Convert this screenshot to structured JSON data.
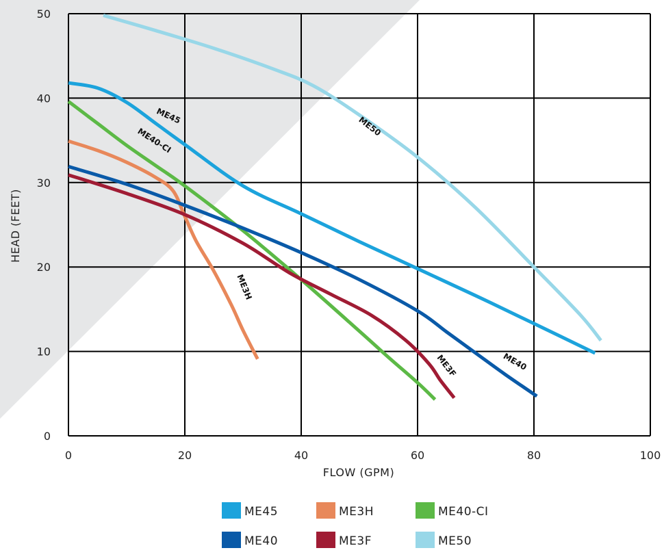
{
  "chart_data": {
    "type": "line",
    "xlabel": "FLOW (GPM)",
    "ylabel": "HEAD (FEET)",
    "xlim": [
      0,
      100
    ],
    "ylim": [
      0,
      50
    ],
    "x_ticks": [
      "0",
      "20",
      "40",
      "60",
      "80",
      "100"
    ],
    "y_ticks": [
      "0",
      "10",
      "20",
      "30",
      "40",
      "50"
    ],
    "grid": true,
    "legend_position": "bottom",
    "background_shading": "#e6e7e8",
    "series": [
      {
        "name": "ME45",
        "color": "#1ca3dc",
        "label": "ME45",
        "points": [
          [
            0,
            41.8
          ],
          [
            5,
            41.2
          ],
          [
            10,
            39.5
          ],
          [
            15,
            37
          ],
          [
            20,
            34.5
          ],
          [
            30,
            29.6
          ],
          [
            40,
            26.3
          ],
          [
            50,
            23
          ],
          [
            60,
            19.8
          ],
          [
            70,
            16.6
          ],
          [
            80,
            13.3
          ],
          [
            90.5,
            9.8
          ]
        ]
      },
      {
        "name": "ME3H",
        "color": "#e8885a",
        "label": "ME3H",
        "points": [
          [
            0,
            34.9
          ],
          [
            5,
            33.8
          ],
          [
            10,
            32.4
          ],
          [
            15,
            30.6
          ],
          [
            18,
            29
          ],
          [
            20,
            26
          ],
          [
            22,
            23
          ],
          [
            25,
            19.5
          ],
          [
            28,
            15.5
          ],
          [
            30,
            12.5
          ],
          [
            32.5,
            9.1
          ]
        ]
      },
      {
        "name": "ME40-CI",
        "color": "#5cb946",
        "label": "ME40-CI",
        "points": [
          [
            0,
            39.6
          ],
          [
            5,
            37
          ],
          [
            10,
            34.4
          ],
          [
            15,
            32
          ],
          [
            20,
            29.6
          ],
          [
            30,
            24.3
          ],
          [
            40,
            18.5
          ],
          [
            50,
            12.4
          ],
          [
            55,
            9.3
          ],
          [
            60,
            6.3
          ],
          [
            63,
            4.3
          ]
        ]
      },
      {
        "name": "ME40",
        "color": "#0a5aa8",
        "label": "ME40",
        "points": [
          [
            0,
            31.9
          ],
          [
            10,
            29.8
          ],
          [
            20,
            27.3
          ],
          [
            30,
            24.6
          ],
          [
            40,
            21.7
          ],
          [
            50,
            18.5
          ],
          [
            60,
            14.8
          ],
          [
            65,
            12.3
          ],
          [
            70,
            9.8
          ],
          [
            75,
            7.3
          ],
          [
            80.5,
            4.7
          ]
        ]
      },
      {
        "name": "ME3F",
        "color": "#a01c34",
        "label": "ME3F",
        "points": [
          [
            0,
            30.9
          ],
          [
            10,
            28.7
          ],
          [
            20,
            26.2
          ],
          [
            30,
            22.8
          ],
          [
            38,
            19.3
          ],
          [
            45,
            16.8
          ],
          [
            52,
            14.3
          ],
          [
            58,
            11.3
          ],
          [
            62,
            8.5
          ],
          [
            64,
            6.5
          ],
          [
            66.3,
            4.5
          ]
        ]
      },
      {
        "name": "ME50",
        "color": "#98d7e8",
        "label": "ME50",
        "points": [
          [
            6,
            49.8
          ],
          [
            15,
            48
          ],
          [
            25,
            45.9
          ],
          [
            35,
            43.5
          ],
          [
            42,
            41.5
          ],
          [
            50,
            38
          ],
          [
            60,
            33
          ],
          [
            70,
            27
          ],
          [
            80,
            20
          ],
          [
            88,
            14.3
          ],
          [
            91.5,
            11.3
          ]
        ]
      }
    ],
    "curve_labels": [
      {
        "series": "ME45",
        "text": "ME45",
        "x": 17,
        "y": 37.6,
        "angle": 25
      },
      {
        "series": "ME40-CI",
        "text": "ME40-CI",
        "x": 14.5,
        "y": 34.7,
        "angle": 33
      },
      {
        "series": "ME50",
        "text": "ME50",
        "x": 51.5,
        "y": 36.4,
        "angle": 38
      },
      {
        "series": "ME3H",
        "text": "ME3H",
        "x": 29.8,
        "y": 17.5,
        "angle": 68
      },
      {
        "series": "ME3F",
        "text": "ME3F",
        "x": 64.6,
        "y": 8.1,
        "angle": 52
      },
      {
        "series": "ME40",
        "text": "ME40",
        "x": 76.5,
        "y": 8.5,
        "angle": 30
      }
    ],
    "legend": [
      {
        "name": "ME45",
        "color": "#1ca3dc"
      },
      {
        "name": "ME3H",
        "color": "#e8885a"
      },
      {
        "name": "ME40-CI",
        "color": "#5cb946"
      },
      {
        "name": "ME40",
        "color": "#0a5aa8"
      },
      {
        "name": "ME3F",
        "color": "#a01c34"
      },
      {
        "name": "ME50",
        "color": "#98d7e8"
      }
    ]
  }
}
